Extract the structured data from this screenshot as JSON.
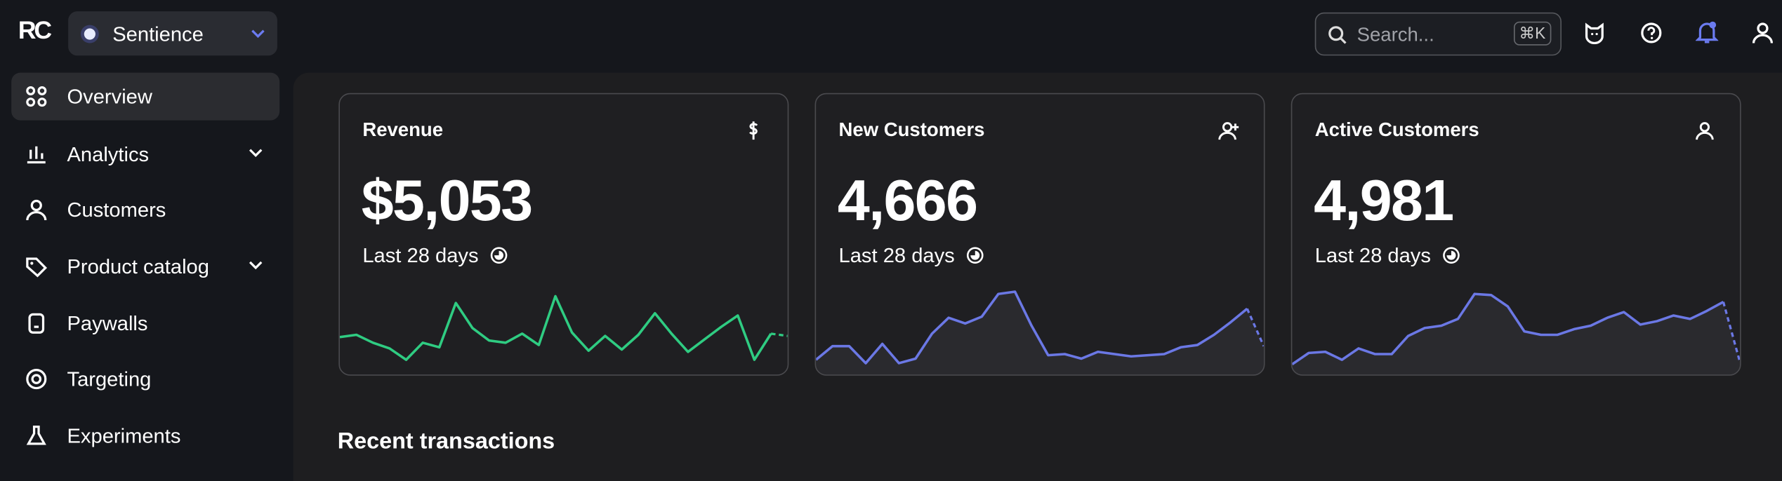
{
  "header": {
    "logo": "RC",
    "project": "Sentience",
    "search_placeholder": "Search...",
    "search_shortcut": "⌘K"
  },
  "sidebar": {
    "items": [
      {
        "label": "Overview",
        "active": true,
        "expandable": false
      },
      {
        "label": "Analytics",
        "active": false,
        "expandable": true
      },
      {
        "label": "Customers",
        "active": false,
        "expandable": false
      },
      {
        "label": "Product catalog",
        "active": false,
        "expandable": true
      },
      {
        "label": "Paywalls",
        "active": false,
        "expandable": false
      },
      {
        "label": "Targeting",
        "active": false,
        "expandable": false
      },
      {
        "label": "Experiments",
        "active": false,
        "expandable": false
      }
    ]
  },
  "cards": [
    {
      "title": "Revenue",
      "value": "$5,053",
      "period": "Last 28 days",
      "chart_data": {
        "type": "line",
        "color": "#2fcc82",
        "area": false,
        "last_point_incomplete": true,
        "values": [
          30,
          32,
          25,
          20,
          10,
          25,
          21,
          60,
          38,
          27,
          25,
          33,
          23,
          66,
          34,
          18,
          31,
          19,
          32,
          51,
          33,
          17,
          28,
          39,
          49,
          10,
          33,
          31
        ]
      }
    },
    {
      "title": "New Customers",
      "value": "4,666",
      "period": "Last 28 days",
      "chart_data": {
        "type": "line",
        "color": "#6b78e5",
        "area": true,
        "last_point_incomplete": true,
        "values": [
          10,
          22,
          22,
          7,
          24,
          7,
          11,
          33,
          47,
          42,
          48,
          68,
          70,
          40,
          14,
          15,
          11,
          17,
          15,
          13,
          14,
          15,
          21,
          23,
          32,
          43,
          55,
          22
        ]
      }
    },
    {
      "title": "Active Customers",
      "value": "4,981",
      "period": "Last 28 days",
      "chart_data": {
        "type": "line",
        "color": "#6b78e5",
        "area": true,
        "last_point_incomplete": true,
        "values": [
          6,
          16,
          17,
          10,
          20,
          15,
          15,
          31,
          38,
          40,
          46,
          68,
          67,
          57,
          35,
          32,
          32,
          37,
          40,
          47,
          52,
          41,
          44,
          49,
          46,
          53,
          61,
          8
        ]
      }
    }
  ],
  "section_title": "Recent transactions"
}
